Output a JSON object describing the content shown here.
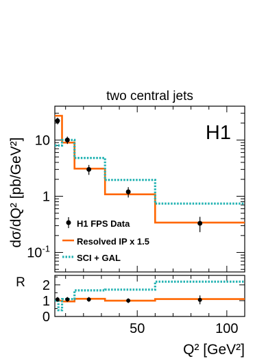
{
  "chart_data": [
    {
      "type": "line",
      "title": "two central jets",
      "watermark": "H1",
      "ylabel": "dσ/dQ² [pb/GeV²]",
      "yscale": "log",
      "xlim": [
        4,
        110
      ],
      "ylim": [
        0.045,
        40
      ],
      "y_ticks": [
        {
          "value": 0.1,
          "base": "10",
          "exp": "-1"
        },
        {
          "value": 1,
          "base": "1",
          "exp": ""
        },
        {
          "value": 10,
          "base": "10",
          "exp": ""
        }
      ],
      "bin_edges": [
        4,
        8,
        15,
        32,
        60,
        110
      ],
      "data": {
        "name": "H1 FPS Data",
        "x": [
          5.5,
          11,
          23,
          45,
          85
        ],
        "y": [
          22,
          10,
          3.0,
          1.2,
          0.33
        ],
        "err": [
          3,
          1.5,
          0.6,
          0.25,
          0.1
        ]
      },
      "series": [
        {
          "name": "Resolved IP x 1.5",
          "color": "#ff6600",
          "style": "solid",
          "values": [
            27,
            9,
            3.1,
            1.08,
            0.34
          ]
        },
        {
          "name": "SCI + GAL",
          "color": "#22b2b2",
          "style": "dotted",
          "values": [
            8,
            10,
            4.8,
            1.95,
            0.74
          ]
        }
      ],
      "legend_position": "bottom-left"
    },
    {
      "type": "line",
      "ylabel": "R",
      "xlabel": "Q² [GeV²]",
      "xlim": [
        4,
        110
      ],
      "ylim": [
        0,
        2.6
      ],
      "x_ticks": [
        50,
        100
      ],
      "y_ticks": [
        0,
        1,
        2
      ],
      "bin_edges": [
        4,
        6,
        8,
        15,
        32,
        60,
        110
      ],
      "data": {
        "name": "H1 FPS Data",
        "x": [
          5.5,
          11,
          23,
          45,
          85
        ],
        "y": [
          1.08,
          1.08,
          1.08,
          1.0,
          1.05
        ],
        "err": [
          0.15,
          0.15,
          0.15,
          0.15,
          0.28
        ]
      },
      "series": [
        {
          "name": "Resolved IP x 1.5",
          "color": "#ff6600",
          "style": "solid",
          "values": [
            1.0,
            1.0,
            0.95,
            1.12,
            1.0,
            1.1
          ]
        },
        {
          "name": "SCI + GAL",
          "color": "#22b2b2",
          "style": "dotted",
          "values": [
            1.0,
            0.4,
            1.1,
            1.65,
            1.7,
            2.2
          ]
        }
      ]
    }
  ]
}
